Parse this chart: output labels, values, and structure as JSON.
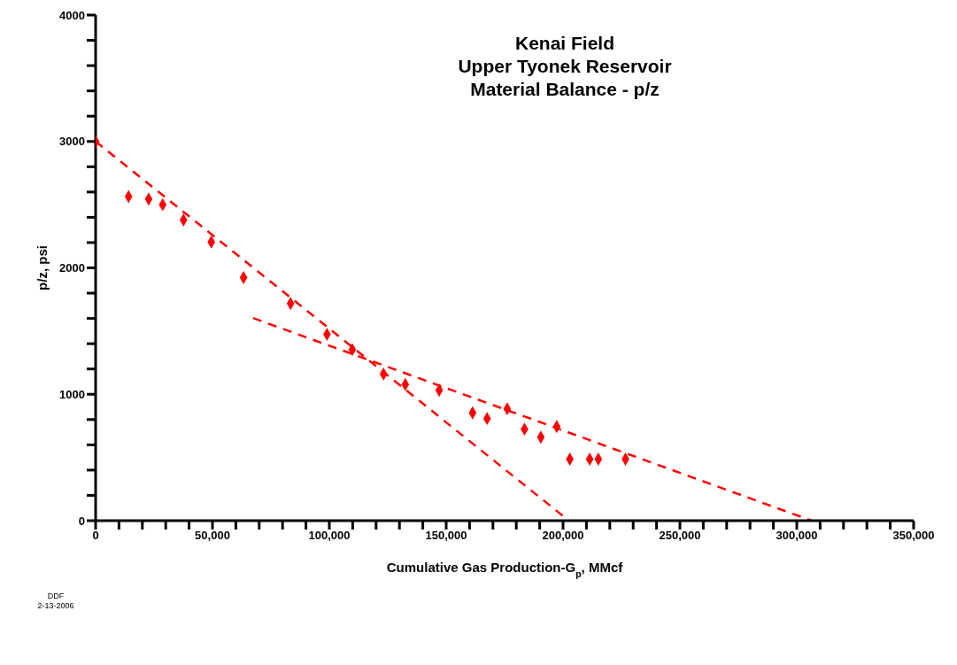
{
  "chart_data": {
    "type": "scatter",
    "title": "Kenai Field\nUpper Tyonek Reservoir\nMaterial Balance - p/z",
    "xlabel": "Cumulative Gas Production-G$_{p}$, MMcf",
    "ylabel": "p/z, psi",
    "annotations": [
      "DDF",
      "2-13-2006"
    ],
    "series": [
      {
        "marker": "diamond",
        "color": "#ff0000",
        "x": [
          0,
          14100,
          22700,
          28700,
          37600,
          49500,
          63300,
          83400,
          99000,
          109800,
          123200,
          132500,
          147000,
          161300,
          167500,
          176100,
          183500,
          190500,
          197300,
          202900,
          211400,
          215100,
          226700
        ],
        "values": [
          3000,
          2564,
          2545,
          2500,
          2378,
          2205,
          1923,
          1718,
          1474,
          1353,
          1160,
          1077,
          1032,
          853,
          808,
          885,
          724,
          660,
          744,
          487,
          487,
          487,
          487
        ]
      },
      {
        "type": "line",
        "marker": "none",
        "line_style": "dashed",
        "color": "#ff0000",
        "x": [
          0,
          202500
        ],
        "values": [
          3000,
          0
        ]
      },
      {
        "type": "line",
        "marker": "none",
        "line_style": "dashed",
        "color": "#ff0000",
        "x": [
          67400,
          306400
        ],
        "values": [
          1603,
          0
        ]
      }
    ],
    "xlim": [
      0,
      350000
    ],
    "xticks": [
      0,
      {
        "value": 10000,
        "label": null
      },
      {
        "value": 20000,
        "label": null
      },
      {
        "value": 30000,
        "label": null
      },
      {
        "value": 40000,
        "label": null
      },
      {
        "value": 50000,
        "label": "50,000"
      },
      {
        "value": 60000,
        "label": null
      },
      {
        "value": 70000,
        "label": null
      },
      {
        "value": 80000,
        "label": null
      },
      {
        "value": 90000,
        "label": null
      },
      {
        "value": 100000,
        "label": "100,000"
      },
      {
        "value": 110000,
        "label": null
      },
      {
        "value": 120000,
        "label": null
      },
      {
        "value": 130000,
        "label": null
      },
      {
        "value": 140000,
        "label": null
      },
      {
        "value": 150000,
        "label": "150,000"
      },
      {
        "value": 160000,
        "label": null
      },
      {
        "value": 170000,
        "label": null
      },
      {
        "value": 180000,
        "label": null
      },
      {
        "value": 190000,
        "label": null
      },
      {
        "value": 200000,
        "label": "200,000"
      },
      {
        "value": 210000,
        "label": null
      },
      {
        "value": 220000,
        "label": null
      },
      {
        "value": 230000,
        "label": null
      },
      {
        "value": 240000,
        "label": null
      },
      {
        "value": 250000,
        "label": "250,000"
      },
      {
        "value": 260000,
        "label": null
      },
      {
        "value": 270000,
        "label": null
      },
      {
        "value": 280000,
        "label": null
      },
      {
        "value": 290000,
        "label": null
      },
      {
        "value": 300000,
        "label": "300,000"
      },
      {
        "value": 310000,
        "label": null
      },
      {
        "value": 320000,
        "label": null
      },
      {
        "value": 330000,
        "label": null
      },
      {
        "value": 340000,
        "label": null
      },
      {
        "value": 350000,
        "label": "350,000"
      }
    ],
    "ylim": [
      0,
      4000
    ],
    "yticks": [
      0,
      {
        "value": 200,
        "label": null
      },
      {
        "value": 400,
        "label": null
      },
      {
        "value": 600,
        "label": null
      },
      {
        "value": 800,
        "label": null
      },
      1000,
      {
        "value": 1200,
        "label": null
      },
      {
        "value": 1400,
        "label": null
      },
      {
        "value": 1600,
        "label": null
      },
      {
        "value": 1800,
        "label": null
      },
      2000,
      {
        "value": 2200,
        "label": null
      },
      {
        "value": 2400,
        "label": null
      },
      {
        "value": 2600,
        "label": null
      },
      {
        "value": 2800,
        "label": null
      },
      3000,
      {
        "value": 3200,
        "label": null
      },
      {
        "value": 3400,
        "label": null
      },
      {
        "value": 3600,
        "label": null
      },
      {
        "value": 3800,
        "label": null
      },
      4000
    ]
  }
}
